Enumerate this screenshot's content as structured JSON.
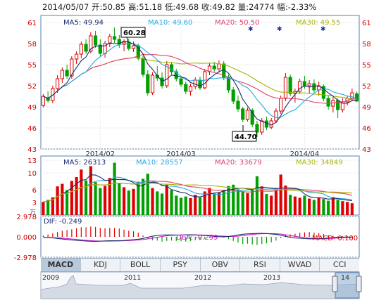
{
  "header": {
    "date": "2014/05/07",
    "open_label": "开:",
    "open": "50.85",
    "high_label": "高:",
    "high": "51.18",
    "low_label": "低:",
    "low": "49.68",
    "close_label": "收:",
    "close": "49.82",
    "volume_label": "量:",
    "volume": "24774",
    "change_label": "幅:",
    "change": "-2.33%"
  },
  "price_panel": {
    "ma5_label": "MA5: 49.94",
    "ma10_label": "MA10: 49.60",
    "ma20_label": "MA20: 50.50",
    "ma30_label": "MA30: 49.55",
    "high_callout": "60.28",
    "low_callout": "44.70",
    "y_ticks": [
      "61",
      "58",
      "55",
      "52",
      "49",
      "46",
      "43"
    ],
    "x_ticks": [
      "2014/02",
      "2014/03",
      "2014/04"
    ]
  },
  "volume_panel": {
    "ma5_label": "MA5: 26313",
    "ma10_label": "MA10: 28557",
    "ma20_label": "MA20: 33679",
    "ma30_label": "MA30: 34849",
    "y_ticks": [
      "13",
      "10",
      "6",
      "3"
    ],
    "unit": "万"
  },
  "macd_panel": {
    "dif_label": "DIF: -0.249",
    "dea_label": "DEA: -0.299",
    "macd_label": "MACD: 0.100",
    "y_ticks": [
      "2.978",
      "0.000",
      "-2.978"
    ]
  },
  "indicator_tabs": [
    "MACD",
    "KDJ",
    "BOLL",
    "PSY",
    "OBV",
    "RSI",
    "WVAD",
    "CCI"
  ],
  "active_tab": "MACD",
  "navigator": {
    "years": [
      "2009",
      "2011",
      "2012",
      "2013",
      "14"
    ]
  },
  "colors": {
    "up": "#e00000",
    "down": "#00a000",
    "ma5": "#1a2a6c",
    "ma10": "#22aadd",
    "ma20": "#e0406a",
    "ma30": "#a8b400",
    "dif": "#1a2a6c",
    "dea": "#d020d0"
  },
  "chart_data": {
    "type": "candlestick",
    "y_range": [
      43,
      62
    ],
    "candles": [
      {
        "o": 49.2,
        "h": 50.8,
        "l": 48.9,
        "c": 50.5
      },
      {
        "o": 50.3,
        "h": 51.2,
        "l": 49.6,
        "c": 49.9
      },
      {
        "o": 49.9,
        "h": 52.0,
        "l": 49.5,
        "c": 51.6
      },
      {
        "o": 51.6,
        "h": 53.5,
        "l": 51.0,
        "c": 53.0
      },
      {
        "o": 53.0,
        "h": 54.6,
        "l": 52.4,
        "c": 54.2
      },
      {
        "o": 54.2,
        "h": 55.0,
        "l": 53.0,
        "c": 53.4
      },
      {
        "o": 53.4,
        "h": 56.2,
        "l": 53.0,
        "c": 55.8
      },
      {
        "o": 55.8,
        "h": 56.9,
        "l": 55.1,
        "c": 56.5
      },
      {
        "o": 56.5,
        "h": 58.3,
        "l": 55.9,
        "c": 57.9
      },
      {
        "o": 57.9,
        "h": 58.6,
        "l": 56.5,
        "c": 56.9
      },
      {
        "o": 56.9,
        "h": 59.6,
        "l": 56.6,
        "c": 59.1
      },
      {
        "o": 59.1,
        "h": 59.8,
        "l": 57.4,
        "c": 57.8
      },
      {
        "o": 57.8,
        "h": 58.6,
        "l": 56.2,
        "c": 56.6
      },
      {
        "o": 56.6,
        "h": 58.4,
        "l": 56.0,
        "c": 58.0
      },
      {
        "o": 58.0,
        "h": 59.4,
        "l": 57.5,
        "c": 59.0
      },
      {
        "o": 59.0,
        "h": 60.28,
        "l": 58.1,
        "c": 58.6
      },
      {
        "o": 58.6,
        "h": 59.2,
        "l": 57.4,
        "c": 57.9
      },
      {
        "o": 57.9,
        "h": 58.6,
        "l": 56.9,
        "c": 58.2
      },
      {
        "o": 58.2,
        "h": 58.7,
        "l": 57.0,
        "c": 57.3
      },
      {
        "o": 57.3,
        "h": 58.3,
        "l": 56.8,
        "c": 57.7
      },
      {
        "o": 57.7,
        "h": 58.0,
        "l": 55.6,
        "c": 55.9
      },
      {
        "o": 55.9,
        "h": 56.3,
        "l": 53.2,
        "c": 53.6
      },
      {
        "o": 53.6,
        "h": 54.2,
        "l": 50.6,
        "c": 51.0
      },
      {
        "o": 51.0,
        "h": 53.9,
        "l": 50.7,
        "c": 53.5
      },
      {
        "o": 53.5,
        "h": 54.8,
        "l": 52.7,
        "c": 53.1
      },
      {
        "o": 53.1,
        "h": 53.9,
        "l": 51.6,
        "c": 52.0
      },
      {
        "o": 52.0,
        "h": 55.5,
        "l": 51.7,
        "c": 55.0
      },
      {
        "o": 55.0,
        "h": 55.4,
        "l": 53.6,
        "c": 54.0
      },
      {
        "o": 54.0,
        "h": 54.4,
        "l": 52.6,
        "c": 53.0
      },
      {
        "o": 53.0,
        "h": 53.4,
        "l": 51.8,
        "c": 52.2
      },
      {
        "o": 52.2,
        "h": 52.6,
        "l": 50.8,
        "c": 51.2
      },
      {
        "o": 51.2,
        "h": 52.3,
        "l": 50.6,
        "c": 51.9
      },
      {
        "o": 51.9,
        "h": 53.2,
        "l": 51.5,
        "c": 52.8
      },
      {
        "o": 52.8,
        "h": 53.3,
        "l": 51.4,
        "c": 51.7
      },
      {
        "o": 51.7,
        "h": 54.4,
        "l": 51.5,
        "c": 54.0
      },
      {
        "o": 54.0,
        "h": 55.2,
        "l": 53.5,
        "c": 54.8
      },
      {
        "o": 54.8,
        "h": 55.4,
        "l": 54.0,
        "c": 54.4
      },
      {
        "o": 54.4,
        "h": 55.6,
        "l": 53.9,
        "c": 55.1
      },
      {
        "o": 55.1,
        "h": 55.5,
        "l": 52.8,
        "c": 53.2
      },
      {
        "o": 53.2,
        "h": 53.6,
        "l": 51.0,
        "c": 51.4
      },
      {
        "o": 51.4,
        "h": 51.8,
        "l": 49.4,
        "c": 49.8
      },
      {
        "o": 49.8,
        "h": 50.6,
        "l": 48.3,
        "c": 48.7
      },
      {
        "o": 48.7,
        "h": 49.0,
        "l": 46.8,
        "c": 47.2
      },
      {
        "o": 47.2,
        "h": 48.9,
        "l": 46.9,
        "c": 48.5
      },
      {
        "o": 48.5,
        "h": 48.8,
        "l": 46.1,
        "c": 46.5
      },
      {
        "o": 46.5,
        "h": 47.0,
        "l": 44.7,
        "c": 45.4
      },
      {
        "o": 45.4,
        "h": 47.4,
        "l": 45.0,
        "c": 47.0
      },
      {
        "o": 47.0,
        "h": 47.6,
        "l": 45.7,
        "c": 46.1
      },
      {
        "o": 46.1,
        "h": 47.4,
        "l": 45.8,
        "c": 47.0
      },
      {
        "o": 47.0,
        "h": 48.8,
        "l": 46.7,
        "c": 48.4
      },
      {
        "o": 48.4,
        "h": 50.6,
        "l": 48.0,
        "c": 50.2
      },
      {
        "o": 50.2,
        "h": 53.8,
        "l": 49.8,
        "c": 53.2
      },
      {
        "o": 53.2,
        "h": 53.6,
        "l": 50.5,
        "c": 50.9
      },
      {
        "o": 50.9,
        "h": 51.6,
        "l": 49.6,
        "c": 51.2
      },
      {
        "o": 51.2,
        "h": 53.0,
        "l": 50.8,
        "c": 52.6
      },
      {
        "o": 52.6,
        "h": 53.4,
        "l": 51.6,
        "c": 52.0
      },
      {
        "o": 52.0,
        "h": 52.8,
        "l": 50.9,
        "c": 52.3
      },
      {
        "o": 52.3,
        "h": 52.9,
        "l": 51.0,
        "c": 51.4
      },
      {
        "o": 51.4,
        "h": 52.6,
        "l": 50.6,
        "c": 51.9
      },
      {
        "o": 51.9,
        "h": 52.2,
        "l": 49.8,
        "c": 50.2
      },
      {
        "o": 50.2,
        "h": 50.6,
        "l": 48.6,
        "c": 49.1
      },
      {
        "o": 49.1,
        "h": 50.4,
        "l": 48.2,
        "c": 49.9
      },
      {
        "o": 49.9,
        "h": 50.2,
        "l": 47.4,
        "c": 48.6
      },
      {
        "o": 48.6,
        "h": 50.2,
        "l": 48.2,
        "c": 49.7
      },
      {
        "o": 49.7,
        "h": 50.6,
        "l": 49.2,
        "c": 50.2
      },
      {
        "o": 50.2,
        "h": 51.6,
        "l": 49.8,
        "c": 51.0
      },
      {
        "o": 50.85,
        "h": 51.18,
        "l": 49.68,
        "c": 49.82
      }
    ],
    "volume_range": [
      0,
      14
    ],
    "volumes": [
      3.1,
      3.6,
      4.2,
      6.8,
      7.4,
      5.9,
      8.1,
      9.0,
      10.8,
      8.2,
      11.6,
      7.8,
      6.4,
      6.9,
      8.8,
      12.4,
      7.5,
      6.6,
      5.8,
      6.2,
      7.9,
      8.6,
      9.8,
      6.4,
      5.6,
      5.1,
      7.2,
      5.9,
      4.6,
      4.1,
      4.4,
      4.0,
      4.8,
      4.2,
      5.6,
      6.4,
      5.1,
      5.4,
      6.0,
      6.9,
      7.2,
      6.1,
      5.6,
      5.2,
      6.3,
      9.2,
      6.8,
      5.0,
      4.6,
      5.9,
      9.6,
      7.0,
      4.8,
      4.4,
      4.1,
      4.6,
      3.9,
      3.6,
      4.2,
      3.8,
      3.4,
      4.3,
      3.6,
      3.3,
      3.1,
      2.8
    ],
    "macd_range": [
      -2.978,
      2.978
    ],
    "macd": [
      0.2,
      0.35,
      0.5,
      0.7,
      0.9,
      1.0,
      1.1,
      1.25,
      1.4,
      1.4,
      1.5,
      1.45,
      1.3,
      1.25,
      1.3,
      1.3,
      1.2,
      1.05,
      0.9,
      0.8,
      0.6,
      0.2,
      -0.3,
      -0.5,
      -0.55,
      -0.7,
      -0.6,
      -0.55,
      -0.6,
      -0.65,
      -0.7,
      -0.62,
      -0.5,
      -0.48,
      -0.3,
      -0.15,
      -0.05,
      0.05,
      -0.1,
      -0.35,
      -0.6,
      -0.85,
      -1.05,
      -1.0,
      -1.1,
      -1.2,
      -1.05,
      -0.95,
      -0.8,
      -0.55,
      -0.2,
      0.3,
      0.35,
      0.45,
      0.6,
      0.65,
      0.7,
      0.6,
      0.55,
      0.4,
      0.2,
      0.15,
      0.05,
      0.1,
      0.12,
      0.1
    ]
  }
}
